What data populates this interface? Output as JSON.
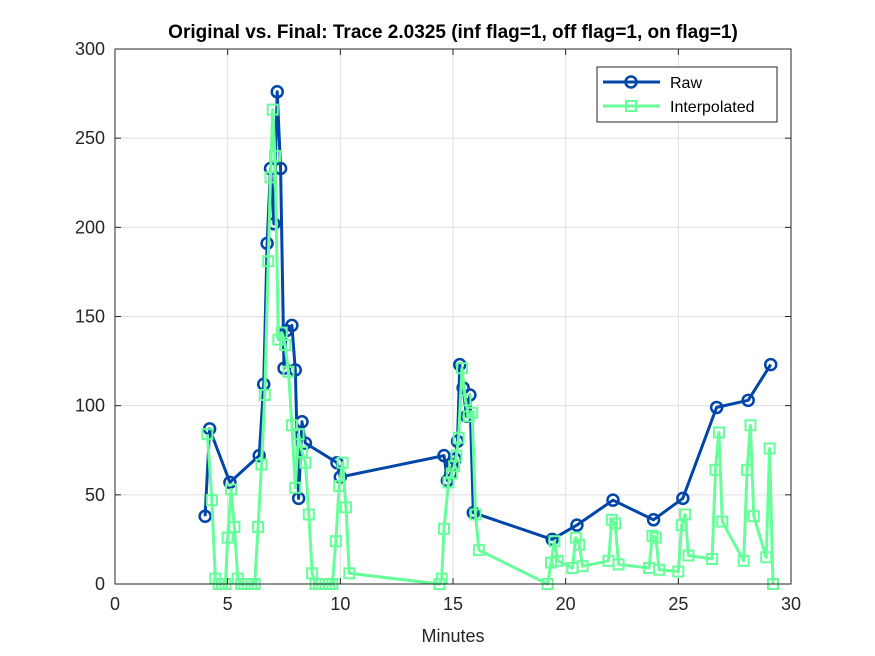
{
  "chart_data": {
    "type": "line",
    "title": "Original vs. Final: Trace 2.0325 (inf flag=1, off flag=1, on flag=1)",
    "xlabel": "Minutes",
    "ylabel": "",
    "xlim": [
      0,
      30
    ],
    "ylim": [
      0,
      300
    ],
    "xticks": [
      0,
      5,
      10,
      15,
      20,
      25,
      30
    ],
    "yticks": [
      0,
      50,
      100,
      150,
      200,
      250,
      300
    ],
    "grid": true,
    "legend_position": "top-right",
    "series": [
      {
        "name": "Raw",
        "color": "#0046a8",
        "marker": "circle",
        "x": [
          4.0,
          4.2,
          5.1,
          6.4,
          6.6,
          6.75,
          6.9,
          7.05,
          7.2,
          7.35,
          7.5,
          7.6,
          7.85,
          8.0,
          8.15,
          8.3,
          8.45,
          9.85,
          10.0,
          14.6,
          14.75,
          14.9,
          15.0,
          15.1,
          15.2,
          15.3,
          15.45,
          15.6,
          15.75,
          15.9,
          19.4,
          20.5,
          22.1,
          23.9,
          25.2,
          26.7,
          28.1,
          29.1
        ],
        "y": [
          38,
          87,
          57,
          72,
          112,
          191,
          233,
          202,
          276,
          233,
          121,
          142,
          145,
          120,
          48,
          91,
          79,
          68,
          60,
          72,
          58,
          62,
          67,
          70,
          80,
          123,
          110,
          94,
          106,
          40,
          25,
          33,
          47,
          36,
          48,
          99,
          103,
          123
        ]
      },
      {
        "name": "Interpolated",
        "color": "#66ff99",
        "marker": "square",
        "x": [
          4.1,
          4.3,
          4.45,
          4.6,
          4.75,
          4.9,
          5.0,
          5.15,
          5.3,
          5.45,
          5.6,
          5.75,
          5.9,
          6.05,
          6.2,
          6.35,
          6.5,
          6.65,
          6.8,
          6.9,
          7.0,
          7.1,
          7.25,
          7.4,
          7.55,
          7.7,
          7.85,
          8.0,
          8.15,
          8.3,
          8.45,
          8.6,
          8.75,
          8.9,
          9.05,
          9.2,
          9.35,
          9.5,
          9.65,
          9.8,
          9.95,
          10.1,
          10.25,
          10.4,
          14.4,
          14.5,
          14.6,
          14.8,
          14.95,
          15.05,
          15.15,
          15.25,
          15.4,
          15.55,
          15.7,
          15.85,
          16.0,
          16.15,
          19.2,
          19.35,
          19.5,
          19.65,
          20.3,
          20.45,
          20.6,
          20.75,
          21.9,
          22.05,
          22.2,
          22.35,
          23.7,
          23.85,
          24.0,
          24.15,
          25.0,
          25.15,
          25.3,
          25.45,
          26.5,
          26.65,
          26.8,
          26.95,
          27.9,
          28.05,
          28.2,
          28.35,
          28.9,
          29.05,
          29.2
        ],
        "y": [
          84,
          47,
          3,
          0,
          0,
          0,
          26,
          53,
          32,
          3,
          0,
          0,
          0,
          0,
          0,
          32,
          67,
          106,
          181,
          228,
          266,
          240,
          137,
          141,
          134,
          119,
          89,
          54,
          84,
          74,
          68,
          39,
          6,
          0,
          0,
          0,
          0,
          0,
          0,
          24,
          55,
          68,
          43,
          6,
          0,
          3,
          31,
          57,
          62,
          66,
          72,
          82,
          121,
          103,
          94,
          96,
          39,
          19,
          0,
          12,
          24,
          13,
          9,
          26,
          22,
          10,
          13,
          36,
          34,
          11,
          9,
          27,
          26,
          8,
          7,
          33,
          39,
          16,
          14,
          64,
          85,
          35,
          13,
          64,
          89,
          38,
          15,
          76,
          0
        ]
      }
    ]
  }
}
